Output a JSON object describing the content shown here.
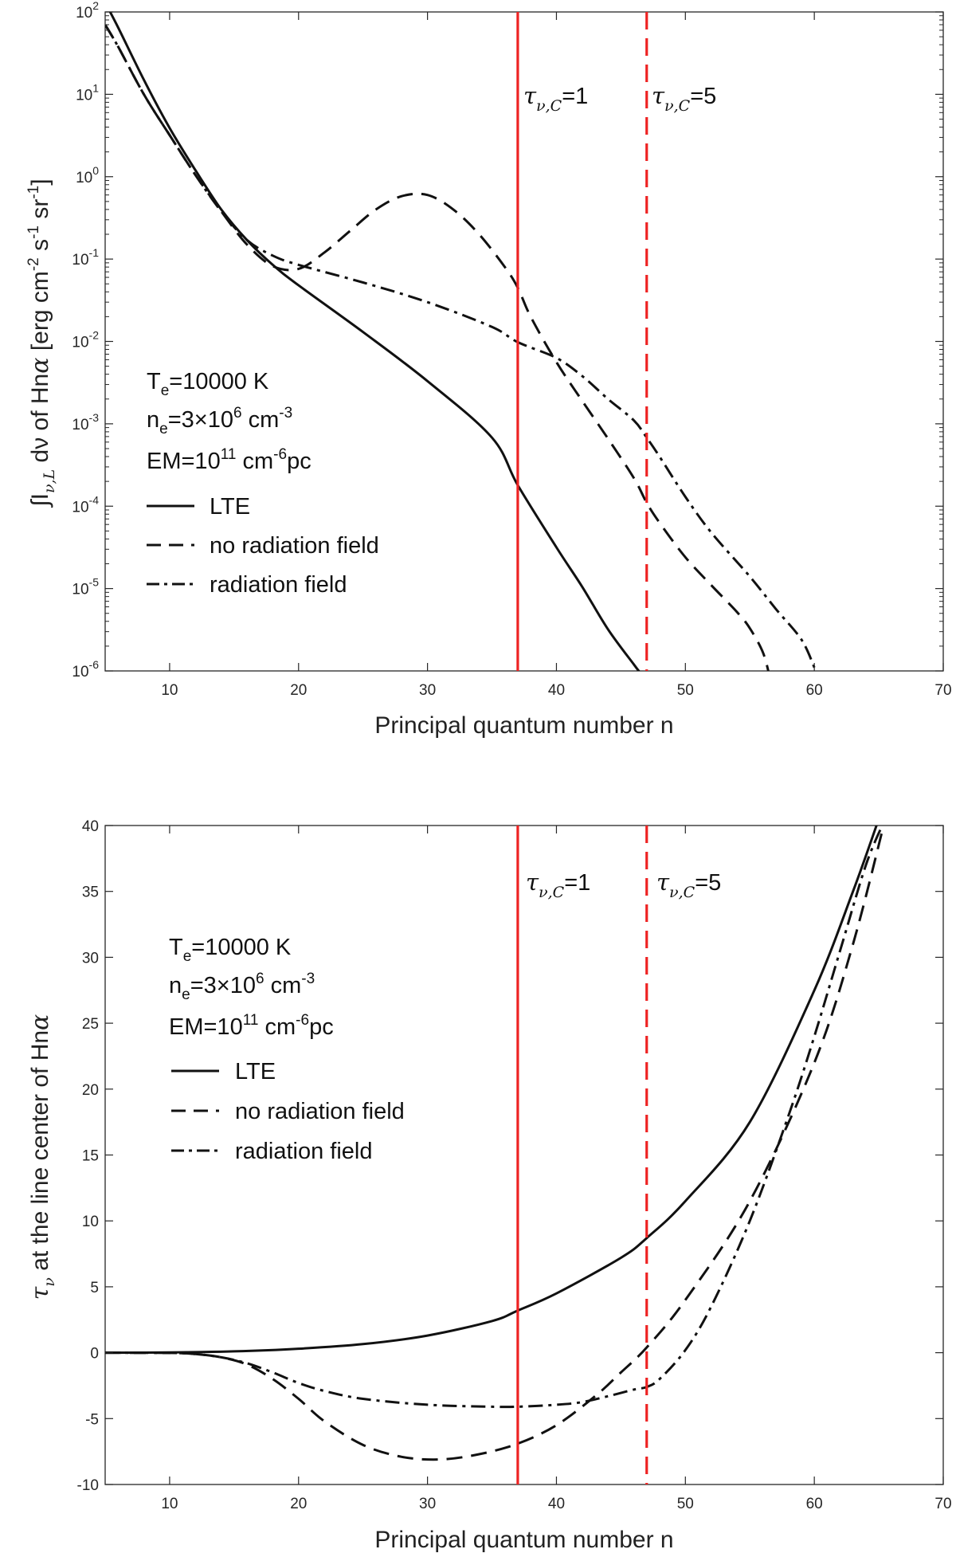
{
  "chart_data": [
    {
      "type": "line",
      "yscale": "log",
      "xlabel": "Principal quantum number n",
      "ylabel": "∫I ν,L dν of Hnα [erg cm -2 s -1 sr -1 ]",
      "ylabel_parts": {
        "a": "∫I",
        "b": "ν,L",
        "c": " dν of Hn",
        "d": "α",
        "e": " [erg cm",
        "f": "-2",
        "g": " s",
        "h": "-1",
        "i": " sr",
        "j": "-1",
        "k": "]"
      },
      "xlim": [
        5,
        70
      ],
      "ylim": [
        1e-06,
        100
      ],
      "xticks": [
        10,
        20,
        30,
        40,
        50,
        60,
        70
      ],
      "yticks": [
        {
          "v": 1e-06,
          "base": "10",
          "exp": "-6"
        },
        {
          "v": 1e-05,
          "base": "10",
          "exp": "-5"
        },
        {
          "v": 0.0001,
          "base": "10",
          "exp": "-4"
        },
        {
          "v": 0.001,
          "base": "10",
          "exp": "-3"
        },
        {
          "v": 0.01,
          "base": "10",
          "exp": "-2"
        },
        {
          "v": 0.1,
          "base": "10",
          "exp": "-1"
        },
        {
          "v": 1,
          "base": "10",
          "exp": "0"
        },
        {
          "v": 10,
          "base": "10",
          "exp": "1"
        },
        {
          "v": 100,
          "base": "10",
          "exp": "2"
        }
      ],
      "series": [
        {
          "name": "LTE",
          "style": "solid",
          "x": [
            5,
            6,
            8,
            10,
            12,
            14,
            16,
            18,
            20,
            25,
            30,
            35,
            37,
            40,
            42,
            44,
            46,
            46.5
          ],
          "y": [
            130,
            65,
            15,
            3.9,
            1.2,
            0.4,
            0.17,
            0.085,
            0.048,
            0.013,
            0.0033,
            0.00068,
            0.00018,
            3.16e-05,
            1.05e-05,
            3.2e-06,
            1.2e-06,
            9.5e-07
          ]
        },
        {
          "name": "no radiation field",
          "style": "dashed",
          "x": [
            5,
            6,
            8,
            10,
            12,
            14,
            16,
            18,
            20,
            22,
            24,
            26,
            28,
            30,
            32,
            34,
            36,
            37,
            38,
            40,
            42,
            44,
            46,
            47,
            48,
            50,
            52,
            54,
            55,
            56,
            56.5
          ],
          "y": [
            70,
            38,
            10,
            3.2,
            1.05,
            0.38,
            0.15,
            0.082,
            0.076,
            0.12,
            0.22,
            0.4,
            0.58,
            0.6,
            0.4,
            0.2,
            0.08,
            0.045,
            0.02,
            0.0056,
            0.0019,
            0.00066,
            0.00022,
            0.00011,
            6.3e-05,
            2.4e-05,
            1.1e-05,
            5.2e-06,
            3.3e-06,
            1.7e-06,
            9e-07
          ]
        },
        {
          "name": "radiation field",
          "style": "dashdot",
          "x": [
            5,
            6,
            8,
            10,
            12,
            14,
            16,
            18,
            20,
            25,
            30,
            35,
            37,
            40,
            42,
            44,
            46,
            47,
            48,
            50,
            52,
            55,
            57,
            59,
            60
          ],
          "y": [
            70,
            38,
            10,
            3.2,
            1.05,
            0.38,
            0.17,
            0.11,
            0.085,
            0.052,
            0.03,
            0.015,
            0.0098,
            0.0063,
            0.0038,
            0.002,
            0.0011,
            0.00068,
            0.0004,
            0.00013,
            4.8e-05,
            1.4e-05,
            5.7e-06,
            2.4e-06,
            1.1e-06
          ]
        }
      ],
      "vlines": [
        {
          "x": 37,
          "style": "solid",
          "label": "τ",
          "label_sub": "ν,C",
          "label_tail": "=1"
        },
        {
          "x": 47,
          "style": "dashed",
          "label": "τ",
          "label_sub": "ν,C",
          "label_tail": "=5"
        }
      ],
      "annotation": {
        "l1a": "T",
        "l1b": "e",
        "l1c": "=10000 K",
        "l2a": "n",
        "l2b": "e",
        "l2c": "=3×10",
        "l2d": "6",
        "l2e": " cm",
        "l2f": "-3",
        "l3a": "EM=10",
        "l3b": "11",
        "l3c": " cm",
        "l3d": "-6",
        "l3e": "pc"
      },
      "legend": [
        "LTE",
        "no radiation field",
        "radiation field"
      ]
    },
    {
      "type": "line",
      "yscale": "linear",
      "xlabel": "Principal quantum number n",
      "ylabel": "τ ν at the line center of Hnα",
      "ylabel_parts": {
        "a": "τ",
        "b": "ν",
        "c": " at the line center of Hn",
        "d": "α"
      },
      "xlim": [
        5,
        70
      ],
      "ylim": [
        -10,
        40
      ],
      "xticks": [
        10,
        20,
        30,
        40,
        50,
        60,
        70
      ],
      "yticks": [
        -10,
        -5,
        0,
        5,
        10,
        15,
        20,
        25,
        30,
        35,
        40
      ],
      "series": [
        {
          "name": "LTE",
          "style": "solid",
          "x": [
            5,
            10,
            15,
            20,
            25,
            30,
            35,
            37,
            40,
            45,
            47,
            50,
            55,
            60,
            63,
            65
          ],
          "y": [
            0,
            0.02,
            0.1,
            0.3,
            0.65,
            1.3,
            2.4,
            3.2,
            4.5,
            7.2,
            8.7,
            11.5,
            17.5,
            27.5,
            35,
            40.5
          ]
        },
        {
          "name": "no radiation field",
          "style": "dashed",
          "x": [
            5,
            10,
            12,
            14,
            16,
            18,
            20,
            22,
            25,
            28,
            31,
            34,
            37,
            40,
            43,
            45,
            47,
            50,
            55,
            60,
            63,
            65.5
          ],
          "y": [
            0,
            -0.02,
            -0.1,
            -0.35,
            -0.9,
            -2,
            -3.5,
            -5.2,
            -7,
            -7.9,
            -8.1,
            -7.7,
            -6.9,
            -5.5,
            -3.3,
            -1.5,
            0.4,
            4,
            11.5,
            22,
            31,
            40.5
          ]
        },
        {
          "name": "radiation field",
          "style": "dashdot",
          "x": [
            5,
            10,
            12,
            14,
            16,
            18,
            20,
            22,
            25,
            30,
            35,
            37,
            40,
            42,
            44,
            46,
            47,
            48,
            50,
            52,
            55,
            58,
            60,
            62,
            64,
            65.5
          ],
          "y": [
            0,
            -0.02,
            -0.1,
            -0.35,
            -0.8,
            -1.5,
            -2.3,
            -2.9,
            -3.5,
            -3.95,
            -4.1,
            -4.1,
            -3.95,
            -3.75,
            -3.3,
            -2.8,
            -2.6,
            -2,
            0.2,
            3.5,
            10,
            18,
            24,
            30.5,
            37,
            40.5
          ]
        }
      ],
      "vlines": [
        {
          "x": 37,
          "style": "solid",
          "label": "τ",
          "label_sub": "ν,C",
          "label_tail": "=1"
        },
        {
          "x": 47,
          "style": "dashed",
          "label": "τ",
          "label_sub": "ν,C",
          "label_tail": "=5"
        }
      ],
      "annotation": {
        "l1a": "T",
        "l1b": "e",
        "l1c": "=10000 K",
        "l2a": "n",
        "l2b": "e",
        "l2c": "=3×10",
        "l2d": "6",
        "l2e": " cm",
        "l2f": "-3",
        "l3a": "EM=10",
        "l3b": "11",
        "l3c": " cm",
        "l3d": "-6",
        "l3e": "pc"
      },
      "legend": [
        "LTE",
        "no radiation field",
        "radiation field"
      ]
    }
  ],
  "colors": {
    "curve": "#111111",
    "vline": "#ee2222",
    "axis": "#262626"
  }
}
